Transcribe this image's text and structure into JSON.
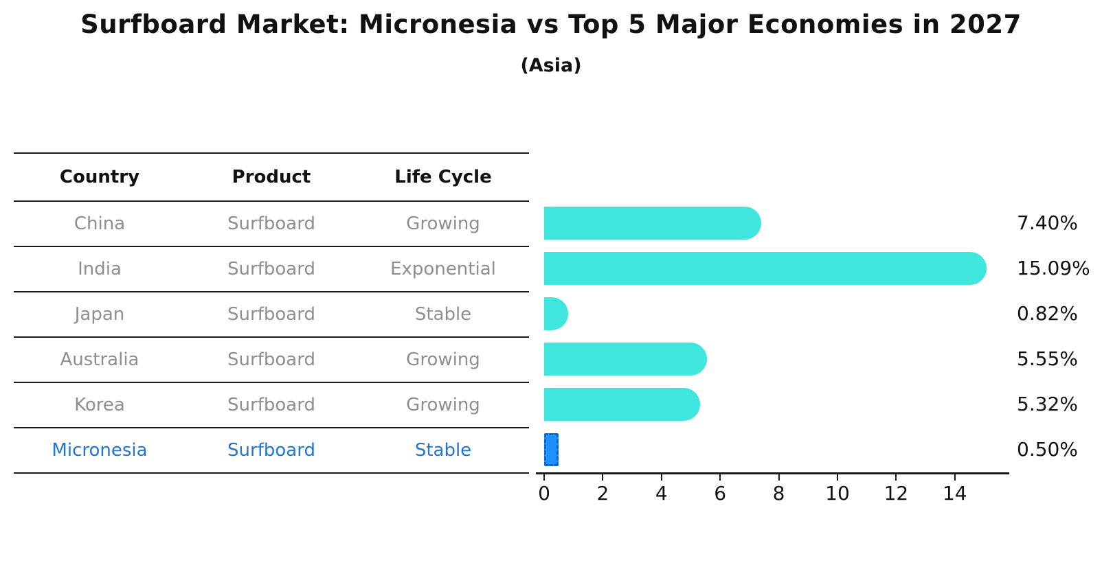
{
  "title": "Surfboard Market: Micronesia vs Top 5 Major Economies in 2027",
  "subtitle": "(Asia)",
  "table": {
    "headers": [
      "Country",
      "Product",
      "Life Cycle"
    ],
    "rows": [
      {
        "country": "China",
        "product": "Surfboard",
        "life_cycle": "Growing",
        "highlight": false
      },
      {
        "country": "India",
        "product": "Surfboard",
        "life_cycle": "Exponential",
        "highlight": false
      },
      {
        "country": "Japan",
        "product": "Surfboard",
        "life_cycle": "Stable",
        "highlight": false
      },
      {
        "country": "Australia",
        "product": "Surfboard",
        "life_cycle": "Growing",
        "highlight": false
      },
      {
        "country": "Korea",
        "product": "Surfboard",
        "life_cycle": "Growing",
        "highlight": false
      },
      {
        "country": "Micronesia",
        "product": "Surfboard",
        "life_cycle": "Stable",
        "highlight": true
      }
    ]
  },
  "chart_data": {
    "type": "bar",
    "orientation": "horizontal",
    "title": "Surfboard Market: Micronesia vs Top 5 Major Economies in 2027",
    "subtitle": "(Asia)",
    "categories": [
      "China",
      "India",
      "Japan",
      "Australia",
      "Korea",
      "Micronesia"
    ],
    "values": [
      7.4,
      15.09,
      0.82,
      5.55,
      5.32,
      0.5
    ],
    "value_labels": [
      "7.40%",
      "15.09%",
      "0.82%",
      "5.55%",
      "5.32%",
      "0.50%"
    ],
    "xlabel": "",
    "ylabel": "",
    "xlim": [
      0,
      15.85
    ],
    "xticks": [
      0,
      2,
      4,
      6,
      8,
      10,
      12,
      14
    ],
    "grid": false,
    "legend": false,
    "highlight_index": 5,
    "bar_color": "#40E5DD",
    "highlight_bar_color": "#1E90FF",
    "highlight_border_color": "#1565C8",
    "highlight_text_color": "#2176D2",
    "row_text_color": "#8E8E8E",
    "value_label_color": "#111111"
  },
  "colors": {
    "bar": "#40E5DD",
    "highlight_bar": "#1E90FF",
    "highlight_border": "#1565C8",
    "highlight_text": "#2176D2",
    "row_text": "#8E8E8E",
    "header_text": "#111111",
    "line": "#1a1a1a"
  }
}
